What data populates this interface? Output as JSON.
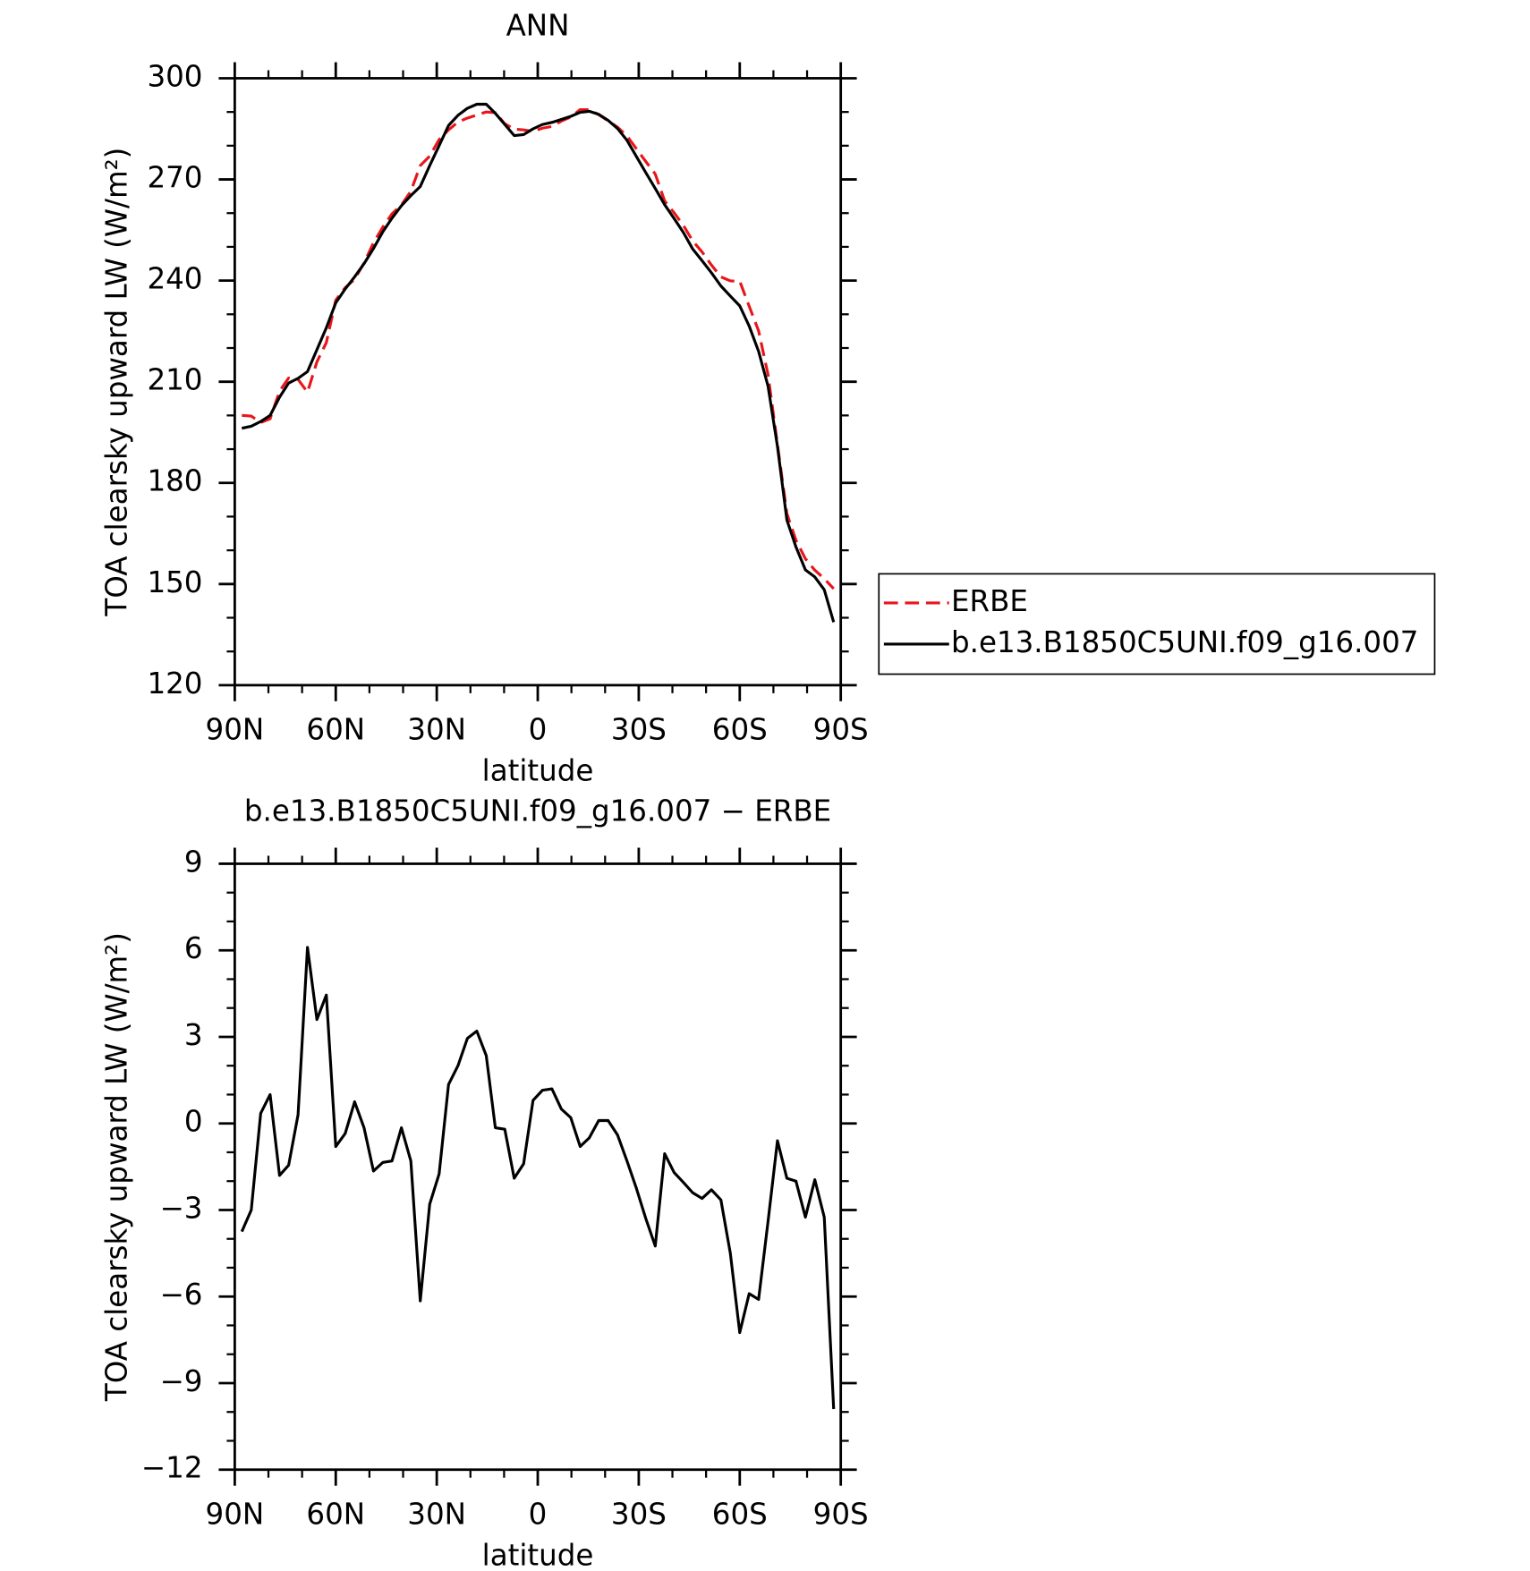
{
  "chart_data": [
    {
      "type": "line",
      "title": "ANN",
      "xlabel": "latitude",
      "ylabel": "TOA clearsky upward LW (W/m²)",
      "x": [
        87.9,
        85.1,
        82.3,
        79.5,
        76.7,
        74.0,
        71.2,
        68.4,
        65.6,
        62.8,
        60.0,
        57.2,
        54.4,
        51.6,
        48.8,
        46.0,
        43.3,
        40.5,
        37.7,
        34.9,
        32.1,
        29.3,
        26.5,
        23.7,
        20.9,
        18.1,
        15.3,
        12.6,
        9.8,
        7.0,
        4.2,
        1.4,
        -1.4,
        -4.2,
        -7.0,
        -9.8,
        -12.6,
        -15.3,
        -18.1,
        -20.9,
        -23.7,
        -26.5,
        -29.3,
        -32.1,
        -34.9,
        -37.7,
        -40.5,
        -43.3,
        -46.0,
        -48.8,
        -51.6,
        -54.4,
        -57.2,
        -60.0,
        -62.8,
        -65.6,
        -68.4,
        -71.2,
        -74.0,
        -76.7,
        -79.5,
        -82.3,
        -85.1,
        -87.9
      ],
      "series": [
        {
          "name": "ERBE",
          "color": "#e8161b",
          "line_style": "dashed",
          "values": [
            200.0,
            199.8,
            197.9,
            199.0,
            207.2,
            211.1,
            210.7,
            206.9,
            215.9,
            221.6,
            234.2,
            237.9,
            240.4,
            245.2,
            251.2,
            255.9,
            259.8,
            262.4,
            266.5,
            274.1,
            276.9,
            281.8,
            284.7,
            287.0,
            288.2,
            289.1,
            290.0,
            289.8,
            286.5,
            284.9,
            284.7,
            284.2,
            285.2,
            285.7,
            287.3,
            288.5,
            290.7,
            290.7,
            289.2,
            287.4,
            285.5,
            282.9,
            279.1,
            275.3,
            271.6,
            263.6,
            260.1,
            256.3,
            251.8,
            248.5,
            244.6,
            241.1,
            239.9,
            239.8,
            232.4,
            225.1,
            212.1,
            191.4,
            170.9,
            163.0,
            157.5,
            154.1,
            151.6,
            148.6
          ]
        },
        {
          "name": "b.e13.B1850C5UNI.f09_g16.007",
          "color": "#000000",
          "line_style": "solid",
          "values": [
            196.2,
            196.8,
            198.2,
            200.0,
            205.4,
            209.6,
            211.0,
            213.0,
            219.5,
            226.0,
            233.4,
            237.5,
            241.1,
            245.0,
            249.5,
            254.5,
            258.5,
            262.2,
            265.2,
            267.9,
            274.1,
            280.0,
            286.0,
            289.0,
            291.1,
            292.3,
            292.3,
            289.6,
            286.3,
            283.0,
            283.3,
            285.0,
            286.3,
            286.9,
            287.8,
            288.7,
            289.9,
            290.2,
            289.3,
            287.5,
            285.1,
            281.6,
            276.8,
            272.0,
            267.3,
            262.5,
            258.4,
            254.2,
            249.4,
            245.9,
            242.3,
            238.4,
            235.4,
            232.5,
            226.5,
            219.0,
            208.7,
            190.8,
            169.0,
            161.0,
            154.2,
            152.1,
            148.3,
            138.7
          ]
        }
      ],
      "xlim": [
        90,
        -90
      ],
      "xticks": [
        {
          "value": 90,
          "label": "90N"
        },
        {
          "value": 60,
          "label": "60N"
        },
        {
          "value": 30,
          "label": "30N"
        },
        0,
        {
          "value": -30,
          "label": "30S"
        },
        {
          "value": -60,
          "label": "60S"
        },
        {
          "value": -90,
          "label": "90S"
        }
      ],
      "ylim": [
        120,
        300
      ],
      "yticks": [
        120,
        150,
        180,
        210,
        240,
        270,
        300
      ],
      "legend": "outside right"
    },
    {
      "type": "line",
      "title": "b.e13.B1850C5UNI.f09_g16.007 − ERBE",
      "xlabel": "latitude",
      "ylabel": "TOA clearsky upward LW (W/m²)",
      "x": [
        87.9,
        85.1,
        82.3,
        79.5,
        76.7,
        74.0,
        71.2,
        68.4,
        65.6,
        62.8,
        60.0,
        57.2,
        54.4,
        51.6,
        48.8,
        46.0,
        43.3,
        40.5,
        37.7,
        34.9,
        32.1,
        29.3,
        26.5,
        23.7,
        20.9,
        18.1,
        15.3,
        12.6,
        9.8,
        7.0,
        4.2,
        1.4,
        -1.4,
        -4.2,
        -7.0,
        -9.8,
        -12.6,
        -15.3,
        -18.1,
        -20.9,
        -23.7,
        -26.5,
        -29.3,
        -32.1,
        -34.9,
        -37.7,
        -40.5,
        -43.3,
        -46.0,
        -48.8,
        -51.6,
        -54.4,
        -57.2,
        -60.0,
        -62.8,
        -65.6,
        -68.4,
        -71.2,
        -74.0,
        -76.7,
        -79.5,
        -82.3,
        -85.1,
        -87.9
      ],
      "values": [
        -3.75,
        -3.0,
        0.35,
        1.0,
        -1.8,
        -1.45,
        0.3,
        6.1,
        3.6,
        4.45,
        -0.8,
        -0.35,
        0.75,
        -0.15,
        -1.65,
        -1.35,
        -1.3,
        -0.15,
        -1.3,
        -6.15,
        -2.8,
        -1.75,
        1.35,
        2.0,
        2.95,
        3.2,
        2.35,
        -0.15,
        -0.2,
        -1.9,
        -1.4,
        0.8,
        1.15,
        1.2,
        0.5,
        0.2,
        -0.8,
        -0.5,
        0.1,
        0.1,
        -0.4,
        -1.3,
        -2.25,
        -3.3,
        -4.25,
        -1.05,
        -1.7,
        -2.05,
        -2.4,
        -2.6,
        -2.3,
        -2.65,
        -4.5,
        -7.25,
        -5.9,
        -6.1,
        -3.4,
        -0.6,
        -1.9,
        -2.0,
        -3.25,
        -1.95,
        -3.25,
        -9.9
      ],
      "color": "#000000",
      "line_style": "solid",
      "xlim": [
        90,
        -90
      ],
      "xticks": [
        {
          "value": 90,
          "label": "90N"
        },
        {
          "value": 60,
          "label": "60N"
        },
        {
          "value": 30,
          "label": "30N"
        },
        0,
        {
          "value": -30,
          "label": "30S"
        },
        {
          "value": -60,
          "label": "60S"
        },
        {
          "value": -90,
          "label": "90S"
        }
      ],
      "ylim": [
        -12,
        9
      ],
      "yticks": [
        {
          "value": -12,
          "label": "−12"
        },
        {
          "value": -9,
          "label": "−9"
        },
        {
          "value": -6,
          "label": "−6"
        },
        {
          "value": -3,
          "label": "−3"
        },
        0,
        3,
        6,
        9
      ]
    }
  ]
}
